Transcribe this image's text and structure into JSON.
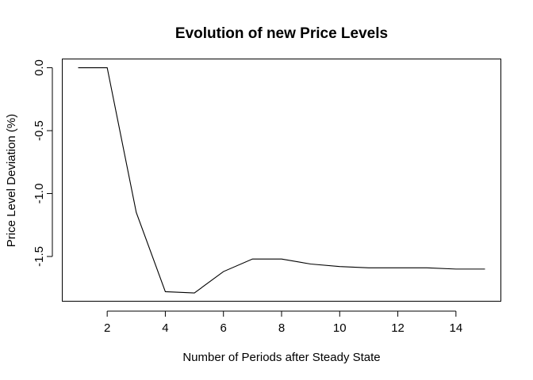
{
  "chart_data": {
    "type": "line",
    "title": "Evolution of new Price Levels",
    "xlabel": "Number of Periods after Steady State",
    "ylabel": "Price Level Deviation (%)",
    "xlim": [
      0.44,
      15.56
    ],
    "ylim": [
      -1.8588,
      0.0728
    ],
    "x_ticks": [
      2,
      4,
      6,
      8,
      10,
      12,
      14
    ],
    "x_tick_labels": [
      "2",
      "4",
      "6",
      "8",
      "10",
      "12",
      "14"
    ],
    "y_ticks": [
      0.0,
      -0.5,
      -1.0,
      -1.5
    ],
    "y_tick_labels": [
      "0.0",
      "-0.5",
      "-1.0",
      "-1.5"
    ],
    "grid": false,
    "legend": "none",
    "line_color": "#000000",
    "series": [
      {
        "x": [
          1,
          2,
          3,
          4,
          5,
          6,
          7,
          8,
          9,
          10,
          11,
          12,
          13,
          14,
          15
        ],
        "values": [
          0.0,
          0.0,
          -1.15,
          -1.78,
          -1.79,
          -1.62,
          -1.52,
          -1.52,
          -1.56,
          -1.58,
          -1.59,
          -1.59,
          -1.59,
          -1.6,
          -1.6
        ]
      }
    ]
  }
}
